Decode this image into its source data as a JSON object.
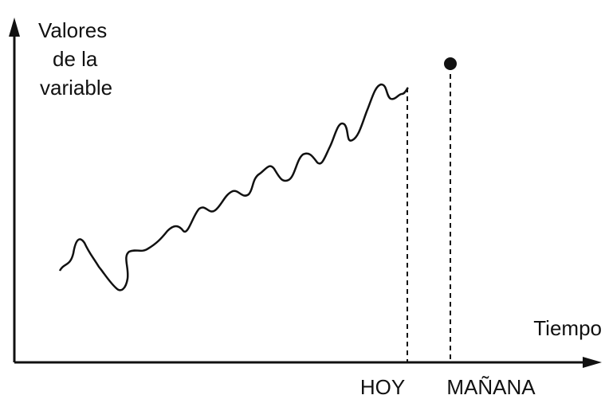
{
  "y_axis_label": {
    "lines": [
      "Valores",
      "de la",
      "variable"
    ]
  },
  "x_axis_label": "Tiempo",
  "markers": {
    "today": "HOY",
    "tomorrow": "MAÑANA"
  }
}
